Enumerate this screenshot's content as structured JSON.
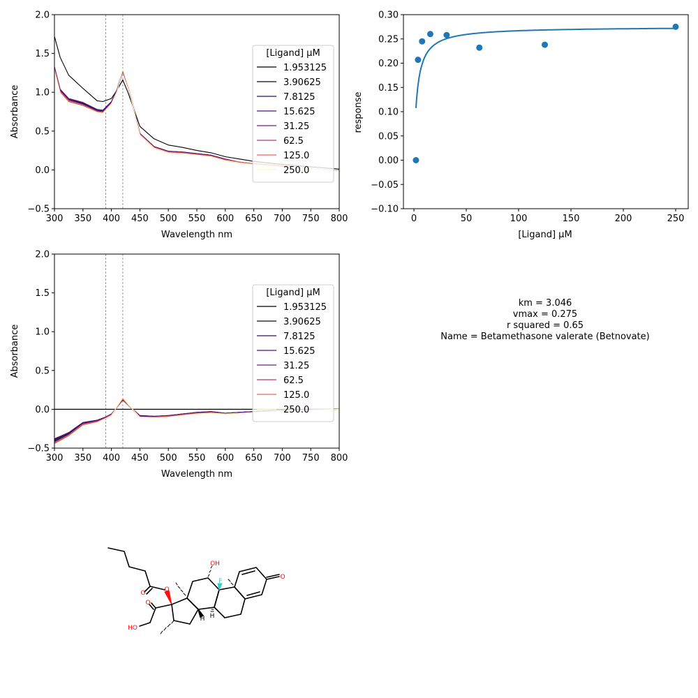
{
  "series_names": [
    "1.953125",
    "3.90625",
    "7.8125",
    "15.625",
    "31.25",
    "62.5",
    "125.0",
    "250.0"
  ],
  "series_colors": [
    "#000004",
    "#0c0826",
    "#2c115f",
    "#51127c",
    "#721f81",
    "#b73779",
    "#f1605d",
    "#fcfdbf"
  ],
  "chart_data": [
    {
      "type": "line",
      "title": "",
      "xlabel": "Wavelength nm",
      "ylabel": "Absorbance",
      "xlim": [
        300,
        800
      ],
      "ylim": [
        -0.5,
        2.0
      ],
      "xticks": [
        "300",
        "350",
        "400",
        "450",
        "500",
        "550",
        "600",
        "650",
        "700",
        "750",
        "800"
      ],
      "yticks": [
        "−0.5",
        "0.0",
        "0.5",
        "1.0",
        "1.5",
        "2.0"
      ],
      "vlines": [
        390,
        420
      ],
      "legend_title": "[Ligand] µM",
      "legend_placement": "right",
      "x": [
        300,
        310,
        325,
        350,
        375,
        385,
        400,
        410,
        420,
        430,
        450,
        475,
        500,
        525,
        550,
        575,
        600,
        625,
        650,
        700,
        750,
        800
      ],
      "series": [
        {
          "name": "1.953125",
          "values": [
            1.72,
            1.45,
            1.22,
            1.05,
            0.89,
            0.88,
            0.92,
            1.03,
            1.16,
            0.98,
            0.56,
            0.4,
            0.32,
            0.29,
            0.25,
            0.22,
            0.17,
            0.14,
            0.11,
            0.07,
            0.04,
            0.01
          ]
        },
        {
          "name": "3.90625",
          "values": [
            1.3,
            1.02,
            0.9,
            0.85,
            0.76,
            0.75,
            0.86,
            1.02,
            1.27,
            1.05,
            0.46,
            0.29,
            0.23,
            0.22,
            0.2,
            0.18,
            0.13,
            0.1,
            0.08,
            0.05,
            0.02,
            -0.01
          ]
        },
        {
          "name": "7.8125",
          "values": [
            1.32,
            1.03,
            0.91,
            0.86,
            0.77,
            0.76,
            0.87,
            1.03,
            1.28,
            1.06,
            0.47,
            0.3,
            0.24,
            0.23,
            0.21,
            0.19,
            0.13,
            0.1,
            0.08,
            0.05,
            0.02,
            -0.01
          ]
        },
        {
          "name": "15.625",
          "values": [
            1.33,
            1.04,
            0.92,
            0.87,
            0.78,
            0.77,
            0.88,
            1.04,
            1.29,
            1.06,
            0.47,
            0.3,
            0.24,
            0.23,
            0.21,
            0.19,
            0.14,
            0.1,
            0.08,
            0.05,
            0.02,
            -0.01
          ]
        },
        {
          "name": "31.25",
          "values": [
            1.31,
            1.02,
            0.9,
            0.84,
            0.76,
            0.75,
            0.86,
            1.02,
            1.28,
            1.05,
            0.46,
            0.29,
            0.23,
            0.22,
            0.2,
            0.18,
            0.13,
            0.1,
            0.08,
            0.05,
            0.02,
            -0.01
          ]
        },
        {
          "name": "62.5",
          "values": [
            1.29,
            1.0,
            0.88,
            0.83,
            0.75,
            0.74,
            0.85,
            1.01,
            1.28,
            1.05,
            0.45,
            0.28,
            0.22,
            0.21,
            0.2,
            0.18,
            0.12,
            0.09,
            0.07,
            0.04,
            0.02,
            -0.01
          ]
        },
        {
          "name": "125.0",
          "values": [
            1.3,
            1.01,
            0.89,
            0.84,
            0.75,
            0.74,
            0.86,
            1.02,
            1.29,
            1.05,
            0.46,
            0.29,
            0.23,
            0.22,
            0.2,
            0.18,
            0.13,
            0.1,
            0.08,
            0.05,
            0.02,
            -0.01
          ]
        },
        {
          "name": "250.0",
          "values": [
            1.28,
            0.99,
            0.87,
            0.82,
            0.74,
            0.73,
            0.85,
            1.01,
            1.3,
            1.06,
            0.45,
            0.28,
            0.22,
            0.21,
            0.19,
            0.17,
            0.12,
            0.09,
            0.07,
            0.04,
            0.02,
            -0.01
          ]
        }
      ]
    },
    {
      "type": "scatter",
      "title": "",
      "xlabel": "[Ligand] µM",
      "ylabel": "response",
      "xlim": [
        -10,
        262
      ],
      "ylim": [
        -0.1,
        0.3
      ],
      "xticks": [
        "0",
        "50",
        "100",
        "150",
        "200",
        "250"
      ],
      "yticks": [
        "−0.10",
        "−0.05",
        "0.00",
        "0.05",
        "0.10",
        "0.15",
        "0.20",
        "0.25",
        "0.30"
      ],
      "points": {
        "x": [
          1.953125,
          3.90625,
          7.8125,
          15.625,
          31.25,
          62.5,
          125.0,
          250.0
        ],
        "y": [
          0.0,
          0.207,
          0.245,
          0.26,
          0.258,
          0.232,
          0.238,
          0.275
        ]
      },
      "fit": {
        "model": "michaelis-menten",
        "km": 3.046,
        "vmax": 0.275,
        "x_range": [
          1.953125,
          250.0
        ]
      }
    },
    {
      "type": "line",
      "title": "",
      "xlabel": "Wavelength nm",
      "ylabel": "Absorbance",
      "xlim": [
        300,
        800
      ],
      "ylim": [
        -0.5,
        2.0
      ],
      "xticks": [
        "300",
        "350",
        "400",
        "450",
        "500",
        "550",
        "600",
        "650",
        "700",
        "750",
        "800"
      ],
      "yticks": [
        "−0.5",
        "0.0",
        "0.5",
        "1.0",
        "1.5",
        "2.0"
      ],
      "vlines": [
        390,
        420
      ],
      "hline": 0,
      "legend_title": "[Ligand] µM",
      "legend_placement": "right",
      "x": [
        300,
        325,
        350,
        375,
        390,
        400,
        410,
        420,
        430,
        450,
        475,
        500,
        525,
        550,
        575,
        600,
        625,
        650,
        700,
        750,
        800
      ],
      "series": [
        {
          "name": "1.953125",
          "values": [
            -0.38,
            -0.3,
            -0.17,
            -0.14,
            -0.1,
            -0.06,
            0.03,
            0.12,
            0.05,
            -0.08,
            -0.09,
            -0.08,
            -0.06,
            -0.04,
            -0.03,
            -0.05,
            -0.04,
            -0.03,
            -0.01,
            0.0,
            0.0
          ]
        },
        {
          "name": "3.90625",
          "values": [
            -0.41,
            -0.32,
            -0.18,
            -0.15,
            -0.11,
            -0.07,
            0.03,
            0.13,
            0.05,
            -0.09,
            -0.1,
            -0.09,
            -0.06,
            -0.05,
            -0.04,
            -0.05,
            -0.04,
            -0.03,
            -0.01,
            0.0,
            0.0
          ]
        },
        {
          "name": "7.8125",
          "values": [
            -0.4,
            -0.31,
            -0.18,
            -0.15,
            -0.11,
            -0.07,
            0.03,
            0.13,
            0.05,
            -0.09,
            -0.1,
            -0.09,
            -0.06,
            -0.05,
            -0.04,
            -0.05,
            -0.04,
            -0.03,
            -0.01,
            0.0,
            0.0
          ]
        },
        {
          "name": "15.625",
          "values": [
            -0.39,
            -0.3,
            -0.17,
            -0.14,
            -0.1,
            -0.06,
            0.03,
            0.13,
            0.05,
            -0.08,
            -0.09,
            -0.08,
            -0.06,
            -0.04,
            -0.03,
            -0.05,
            -0.04,
            -0.03,
            -0.01,
            0.0,
            0.0
          ]
        },
        {
          "name": "31.25",
          "values": [
            -0.42,
            -0.33,
            -0.19,
            -0.15,
            -0.11,
            -0.07,
            0.03,
            0.13,
            0.05,
            -0.09,
            -0.1,
            -0.09,
            -0.07,
            -0.05,
            -0.04,
            -0.06,
            -0.05,
            -0.04,
            -0.02,
            0.0,
            0.0
          ]
        },
        {
          "name": "62.5",
          "values": [
            -0.44,
            -0.34,
            -0.2,
            -0.16,
            -0.12,
            -0.08,
            0.03,
            0.14,
            0.05,
            -0.1,
            -0.11,
            -0.1,
            -0.07,
            -0.05,
            -0.05,
            -0.06,
            -0.05,
            -0.04,
            -0.02,
            -0.01,
            0.0
          ]
        },
        {
          "name": "125.0",
          "values": [
            -0.43,
            -0.33,
            -0.19,
            -0.16,
            -0.11,
            -0.07,
            0.03,
            0.13,
            0.05,
            -0.1,
            -0.1,
            -0.09,
            -0.07,
            -0.05,
            -0.04,
            -0.06,
            -0.05,
            -0.04,
            -0.02,
            -0.01,
            0.0
          ]
        },
        {
          "name": "250.0",
          "values": [
            -0.46,
            -0.35,
            -0.21,
            -0.17,
            -0.12,
            -0.08,
            0.04,
            0.15,
            0.06,
            -0.1,
            -0.11,
            -0.1,
            -0.08,
            -0.06,
            -0.05,
            -0.06,
            -0.05,
            -0.04,
            -0.02,
            -0.01,
            0.0
          ]
        }
      ]
    }
  ],
  "stats": {
    "km_line": "km = 3.046",
    "vmax_line": "vmax = 0.275",
    "r2_line": "r squared = 0.65",
    "name_line": "Name = Betamethasone valerate (Betnovate)"
  },
  "molecule": {
    "atom_labels": [
      "OH",
      "F",
      "O",
      "O",
      "O",
      "O",
      "HO",
      "H",
      "H"
    ],
    "atom_colors": {
      "O": "#ff0d0d",
      "F": "#33cccc",
      "H": "#000000"
    }
  }
}
